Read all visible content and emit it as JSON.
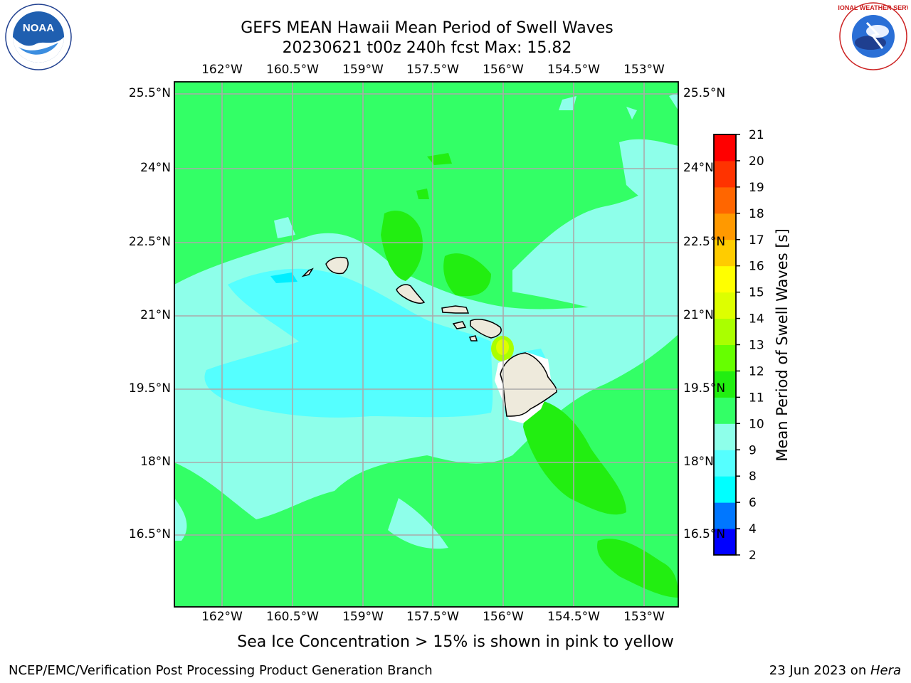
{
  "header": {
    "title_line1": "GEFS MEAN Hawaii Mean Period of Swell Waves",
    "title_line2": "20230621 t00z 240h fcst   Max: 15.82"
  },
  "logos": {
    "left_text": "NOAA",
    "right_text": "NATIONAL WEATHER SERVICE"
  },
  "map": {
    "lon_ticks": [
      "162°W",
      "160.5°W",
      "159°W",
      "157.5°W",
      "156°W",
      "154.5°W",
      "153°W"
    ],
    "lat_ticks": [
      "25.5°N",
      "24°N",
      "22.5°N",
      "21°N",
      "19.5°N",
      "18°N",
      "16.5°N"
    ]
  },
  "colorbar": {
    "label": "Mean Period of Swell Waves [s]",
    "levels": [
      "2",
      "4",
      "6",
      "8",
      "9",
      "10",
      "11",
      "12",
      "13",
      "14",
      "15",
      "16",
      "17",
      "18",
      "19",
      "20",
      "21"
    ],
    "colors": [
      "#0000ff",
      "#0077ff",
      "#00ffff",
      "#55ffff",
      "#8effea",
      "#33ff66",
      "#22ee11",
      "#66ff00",
      "#aaff00",
      "#ddff00",
      "#ffff00",
      "#ffcc00",
      "#ff9900",
      "#ff6600",
      "#ff3300",
      "#ff0000"
    ]
  },
  "note": "Sea Ice Concentration > 15% is shown in pink to yellow",
  "footer": {
    "left": "NCEP/EMC/Verification Post Processing Product Generation Branch",
    "right_date": "23 Jun 2023 on ",
    "right_host": "Hera"
  },
  "chart_data": {
    "type": "heatmap",
    "title": "GEFS MEAN Hawaii Mean Period of Swell Waves",
    "subtitle": "20230621 t00z 240h fcst   Max: 15.82",
    "xlabel": "",
    "ylabel": "",
    "colorbar_label": "Mean Period of Swell Waves [s]",
    "x_ticks": [
      "162°W",
      "160.5°W",
      "159°W",
      "157.5°W",
      "156°W",
      "154.5°W",
      "153°W"
    ],
    "y_ticks": [
      "25.5°N",
      "24°N",
      "22.5°N",
      "21°N",
      "19.5°N",
      "18°N",
      "16.5°N"
    ],
    "xlim_deg_west": [
      163,
      152.3
    ],
    "ylim_deg_north": [
      15,
      25.75
    ],
    "max_value": 15.82,
    "grid": true
  }
}
